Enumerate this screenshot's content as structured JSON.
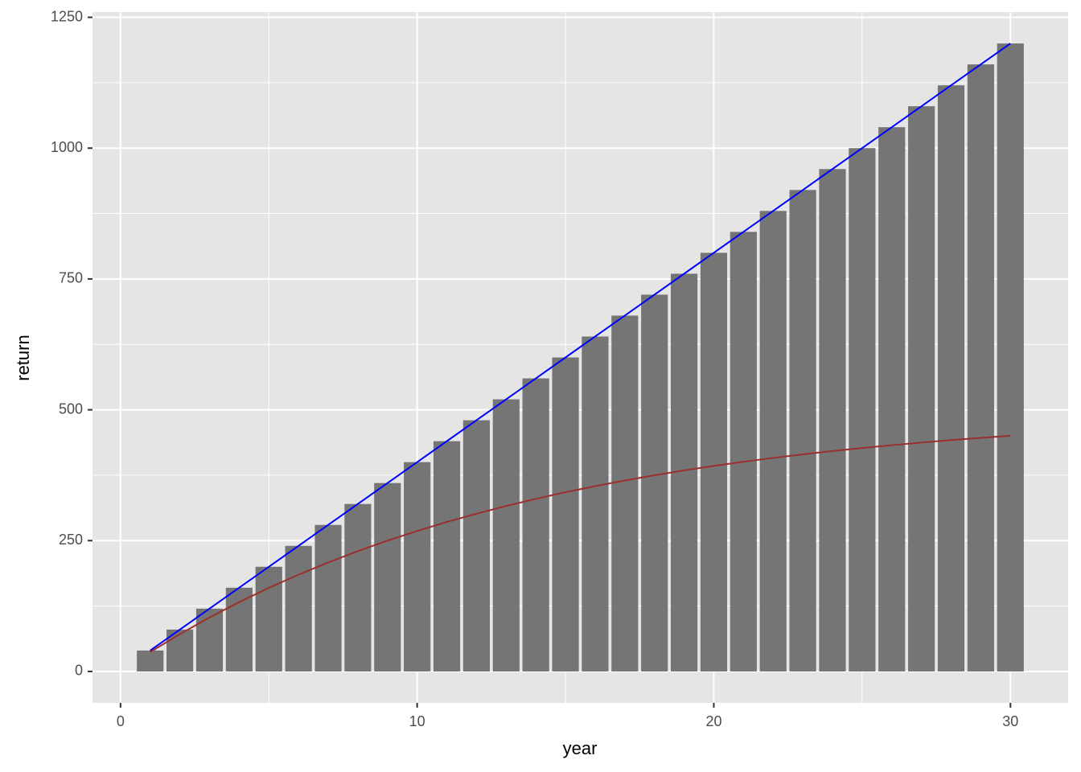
{
  "chart_data": {
    "type": "bar",
    "x_label": "year",
    "y_label": "return",
    "x": [
      1,
      2,
      3,
      4,
      5,
      6,
      7,
      8,
      9,
      10,
      11,
      12,
      13,
      14,
      15,
      16,
      17,
      18,
      19,
      20,
      21,
      22,
      23,
      24,
      25,
      26,
      27,
      28,
      29,
      30
    ],
    "values": [
      40,
      80,
      120,
      160,
      200,
      240,
      280,
      320,
      360,
      400,
      440,
      480,
      520,
      560,
      600,
      640,
      680,
      720,
      760,
      800,
      840,
      880,
      920,
      960,
      1000,
      1040,
      1080,
      1120,
      1160,
      1200
    ],
    "color": "#757575",
    "lines": [
      {
        "color": "#0000ff",
        "values": [
          40,
          80,
          120,
          160,
          200,
          240,
          280,
          320,
          360,
          400,
          440,
          480,
          520,
          560,
          600,
          640,
          680,
          720,
          760,
          800,
          840,
          880,
          920,
          960,
          1000,
          1040,
          1080,
          1120,
          1160,
          1200
        ]
      },
      {
        "color": "#9b2f2f",
        "values": [
          37.0,
          71.3,
          103.1,
          132.5,
          159.7,
          184.9,
          208.3,
          229.9,
          249.9,
          268.4,
          285.6,
          301.4,
          316.2,
          329.8,
          342.4,
          354.1,
          364.9,
          374.9,
          384.2,
          392.7,
          400.7,
          408.0,
          414.9,
          421.2,
          427.0,
          432.4,
          437.4,
          442.1,
          446.4,
          450.3
        ]
      }
    ],
    "xlim": [
      -0.945,
      31.945
    ],
    "ylim": [
      -60,
      1260
    ],
    "xticks": [
      0,
      10,
      20,
      30
    ],
    "yticks": [
      0,
      250,
      500,
      750,
      1000,
      1250
    ],
    "minor_xticks": [
      5,
      15,
      25
    ],
    "minor_yticks": [
      125,
      375,
      625,
      875,
      1125
    ],
    "grid": true
  }
}
